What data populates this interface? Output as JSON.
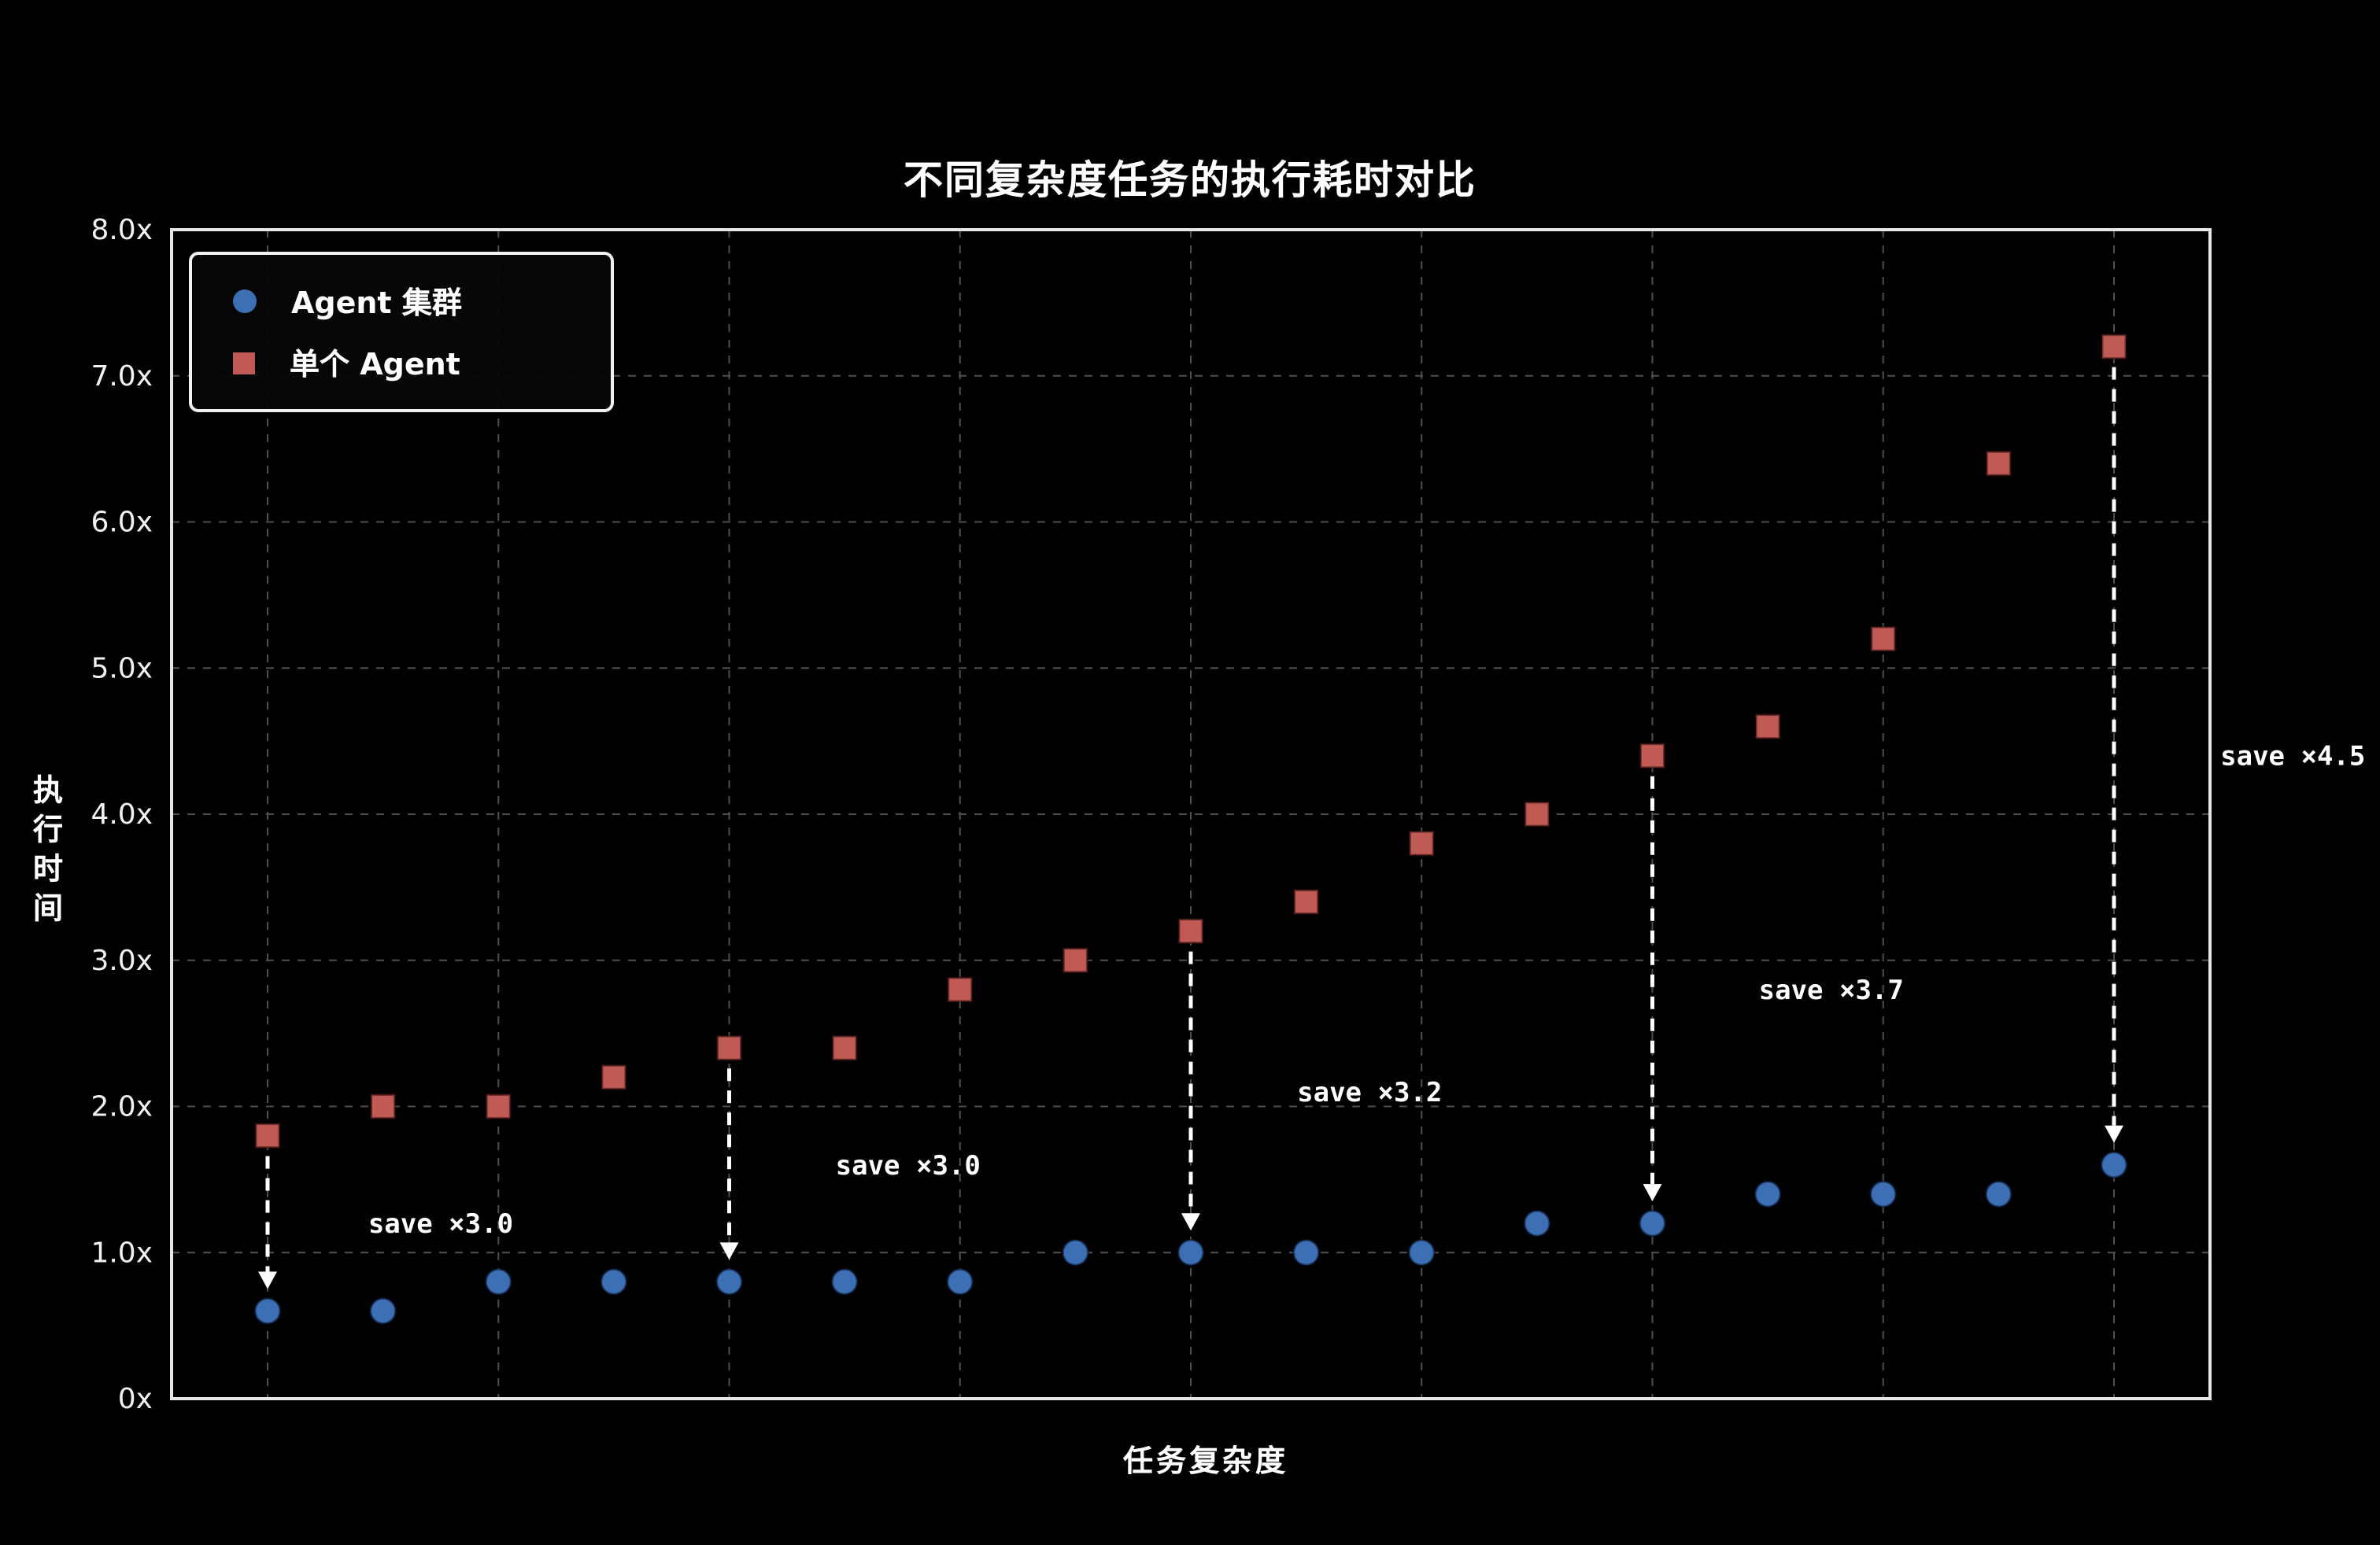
{
  "chart_data": {
    "type": "scatter",
    "title": "不同复杂度任务的执行耗时对比",
    "xlabel": "任务复杂度",
    "ylabel": "执行时间",
    "ylim": [
      0,
      8
    ],
    "ytick_labels": [
      "0x",
      "1.0x",
      "2.0x",
      "3.0x",
      "4.0x",
      "5.0x",
      "6.0x",
      "7.0x",
      "8.0x"
    ],
    "grid": true,
    "legend_position": "top-left",
    "background_color": "#000000",
    "grid_color": "#4f4f4f",
    "series": [
      {
        "name": "Agent 集群",
        "marker": "circle",
        "color": "#3d6fb4",
        "values": [
          0.6,
          0.6,
          0.8,
          0.8,
          0.8,
          0.8,
          0.8,
          1.0,
          1.0,
          1.0,
          1.0,
          1.2,
          1.2,
          1.4,
          1.4,
          1.4,
          1.6
        ]
      },
      {
        "name": "单个 Agent",
        "marker": "square",
        "color": "#c05a54",
        "values": [
          1.8,
          2.0,
          2.0,
          2.2,
          2.4,
          2.4,
          2.8,
          3.0,
          3.2,
          3.4,
          3.8,
          4.0,
          4.4,
          4.6,
          5.2,
          6.4,
          7.2
        ]
      }
    ],
    "annotations": [
      {
        "text": "save ×3.0",
        "arrow_index": 0,
        "label_x": 1.5,
        "label_y": 1.2
      },
      {
        "text": "save ×3.0",
        "arrow_index": 4,
        "label_x": 5.55,
        "label_y": 1.6
      },
      {
        "text": "save ×3.2",
        "arrow_index": 8,
        "label_x": 9.55,
        "label_y": 2.1
      },
      {
        "text": "save ×3.7",
        "arrow_index": 12,
        "label_x": 13.55,
        "label_y": 2.8
      },
      {
        "text": "save ×4.5",
        "arrow_index": 16,
        "label_x": 17.55,
        "label_y": 4.4
      }
    ]
  }
}
